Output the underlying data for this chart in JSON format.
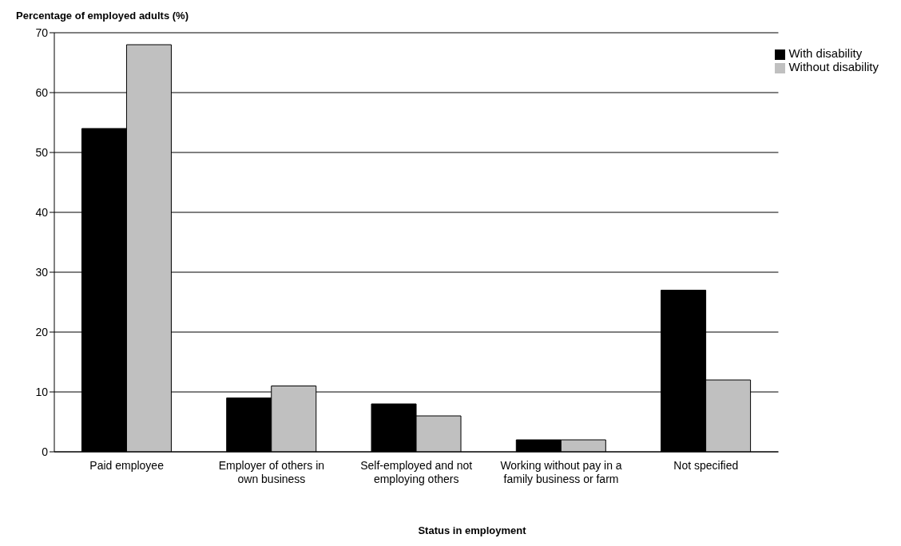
{
  "chart_data": {
    "type": "bar",
    "ylabel": "Percentage of employed adults (%)",
    "xlabel": "Status in employment",
    "categories": [
      "Paid employee",
      "Employer of others in own business",
      "Self-employed and not employing others",
      "Working without pay in a family business or farm",
      "Not specified"
    ],
    "series": [
      {
        "name": "With disability",
        "color": "#000000",
        "values": [
          54,
          9,
          8,
          2,
          27
        ]
      },
      {
        "name": "Without disability",
        "color": "#c0c0c0",
        "values": [
          68,
          11,
          6,
          2,
          12
        ]
      }
    ],
    "ylim": [
      0,
      70
    ],
    "yticks": [
      0,
      10,
      20,
      30,
      40,
      50,
      60,
      70
    ],
    "grid": "y",
    "legend": "top right"
  }
}
